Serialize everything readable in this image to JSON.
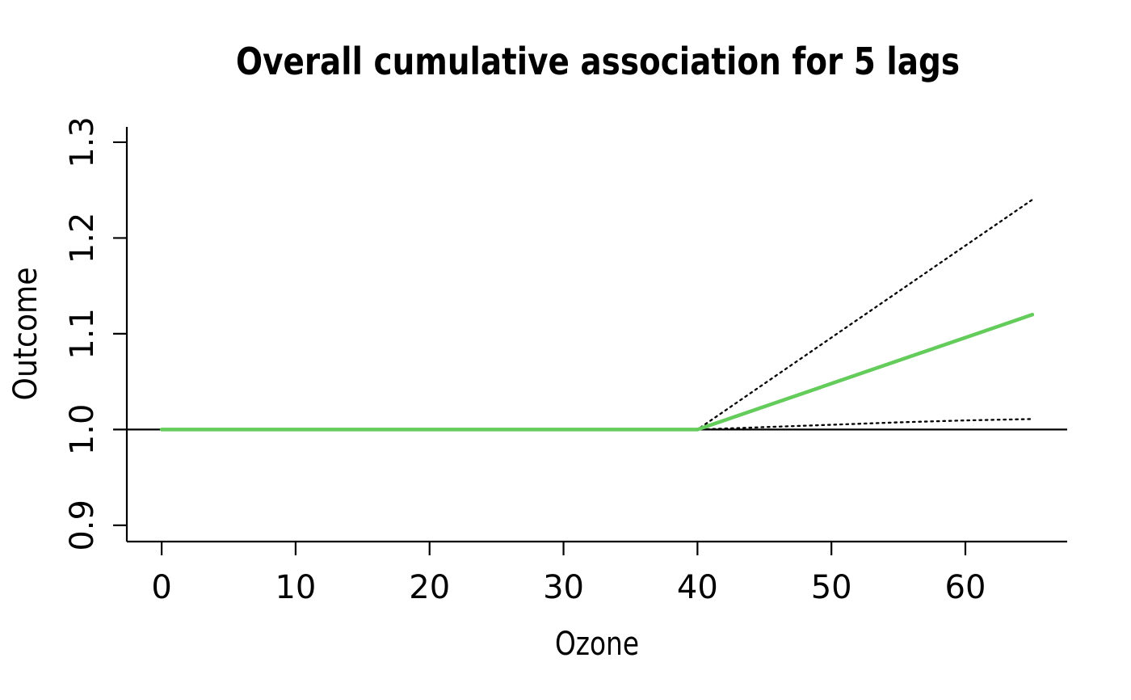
{
  "page": {
    "background": "#ffffff"
  },
  "chart_data": {
    "type": "line",
    "title": "Overall cumulative association for 5 lags",
    "xlabel": "Ozone",
    "ylabel": "Outcome",
    "grid": false,
    "legend": "none",
    "xlim": [
      -2.6,
      67.6
    ],
    "ylim": [
      0.883,
      1.316
    ],
    "x_ticks": [
      {
        "label": "0",
        "value": 0
      },
      {
        "label": "10",
        "value": 10
      },
      {
        "label": "20",
        "value": 20
      },
      {
        "label": "30",
        "value": 30
      },
      {
        "label": "40",
        "value": 40
      },
      {
        "label": "50",
        "value": 50
      },
      {
        "label": "60",
        "value": 60
      }
    ],
    "y_ticks": [
      {
        "label": "0.9",
        "value": 0.9
      },
      {
        "label": "1.0",
        "value": 1.0
      },
      {
        "label": "1.1",
        "value": 1.1
      },
      {
        "label": "1.2",
        "value": 1.2
      },
      {
        "label": "1.3",
        "value": 1.3
      }
    ],
    "reference_line": {
      "y": 1.0,
      "color": "#000000",
      "width": 2.2
    },
    "series": [
      {
        "name": "overall-cumulative-rr",
        "style": "solid",
        "color": "#63cc5a",
        "width": 4.5,
        "points": [
          [
            0,
            1.0
          ],
          [
            40,
            1.0
          ],
          [
            65,
            1.12
          ]
        ]
      },
      {
        "name": "ci-upper-dotted",
        "style": "dotted",
        "color": "#000000",
        "width": 2.3,
        "points": [
          [
            0,
            1.0
          ],
          [
            40,
            1.0
          ],
          [
            65,
            1.24
          ]
        ]
      },
      {
        "name": "ci-lower-dotted",
        "style": "dotted",
        "color": "#000000",
        "width": 2.3,
        "points": [
          [
            0,
            1.0
          ],
          [
            40,
            1.0
          ],
          [
            45,
            1.0025
          ],
          [
            50,
            1.005
          ],
          [
            55,
            1.0075
          ],
          [
            60,
            1.0095
          ],
          [
            65,
            1.011
          ]
        ]
      }
    ]
  }
}
